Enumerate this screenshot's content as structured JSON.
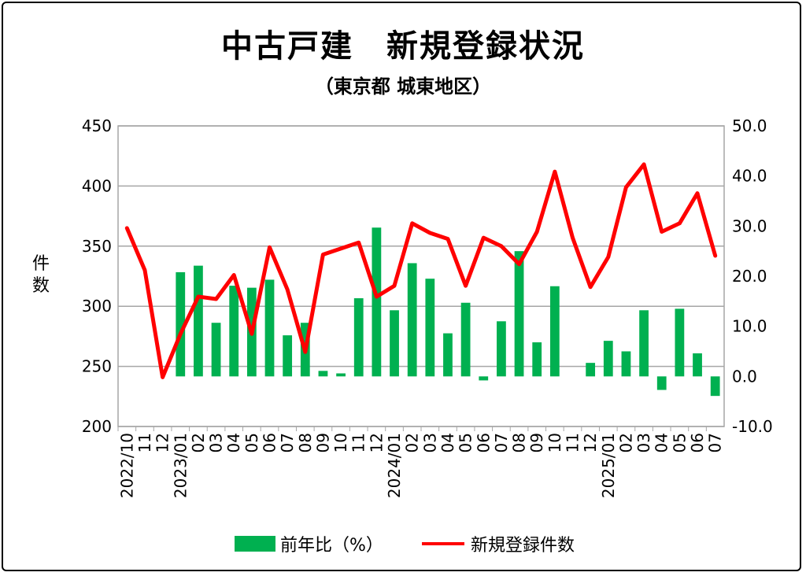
{
  "title": "中古戸建　新規登録状況",
  "subtitle": "（東京都 城東地区）",
  "ylabel_left": "件数",
  "colors": {
    "bar": "#00b050",
    "line": "#ff0000",
    "grid": "#a6a6a6",
    "negative_tick": "#ff0000"
  },
  "legend": {
    "bar_label": "前年比（%）",
    "line_label": "新規登録件数"
  },
  "chart_data": {
    "type": "bar+line",
    "categories": [
      "2022/10",
      "11",
      "12",
      "2023/01",
      "02",
      "03",
      "04",
      "05",
      "06",
      "07",
      "08",
      "09",
      "10",
      "11",
      "12",
      "2024/01",
      "02",
      "03",
      "04",
      "05",
      "06",
      "07",
      "08",
      "09",
      "10",
      "11",
      "12",
      "2025/01",
      "02",
      "03",
      "04",
      "05",
      "06",
      "07"
    ],
    "y_left": {
      "label": "件数",
      "min": 200,
      "max": 450,
      "ticks": [
        "450",
        "400",
        "350",
        "300",
        "250",
        "200"
      ]
    },
    "y_right": {
      "min": -10,
      "max": 50,
      "ticks": [
        "50.0",
        "40.0",
        "30.0",
        "20.0",
        "10.0",
        "0.0",
        "-10.0"
      ]
    },
    "series": [
      {
        "name": "前年比（%）",
        "type": "bar",
        "axis": "right",
        "values": [
          null,
          null,
          null,
          20.8,
          22.1,
          10.7,
          18.1,
          17.7,
          19.3,
          8.2,
          10.7,
          1.1,
          0.6,
          15.6,
          29.7,
          13.2,
          22.6,
          19.5,
          8.6,
          14.7,
          -0.8,
          11.0,
          25.0,
          6.8,
          18.0,
          0.0,
          2.7,
          7.1,
          5.0,
          13.2,
          -2.7,
          13.5,
          4.6,
          -3.9
        ]
      },
      {
        "name": "新規登録件数",
        "type": "line",
        "axis": "left",
        "values": [
          365,
          330,
          241,
          277,
          308,
          306,
          326,
          277,
          349,
          314,
          262,
          343,
          348,
          353,
          308,
          317,
          369,
          361,
          356,
          317,
          357,
          350,
          335,
          362,
          412,
          357,
          316,
          341,
          399,
          418,
          362,
          369,
          394,
          342
        ]
      }
    ],
    "grid": true,
    "legend_position": "bottom"
  }
}
